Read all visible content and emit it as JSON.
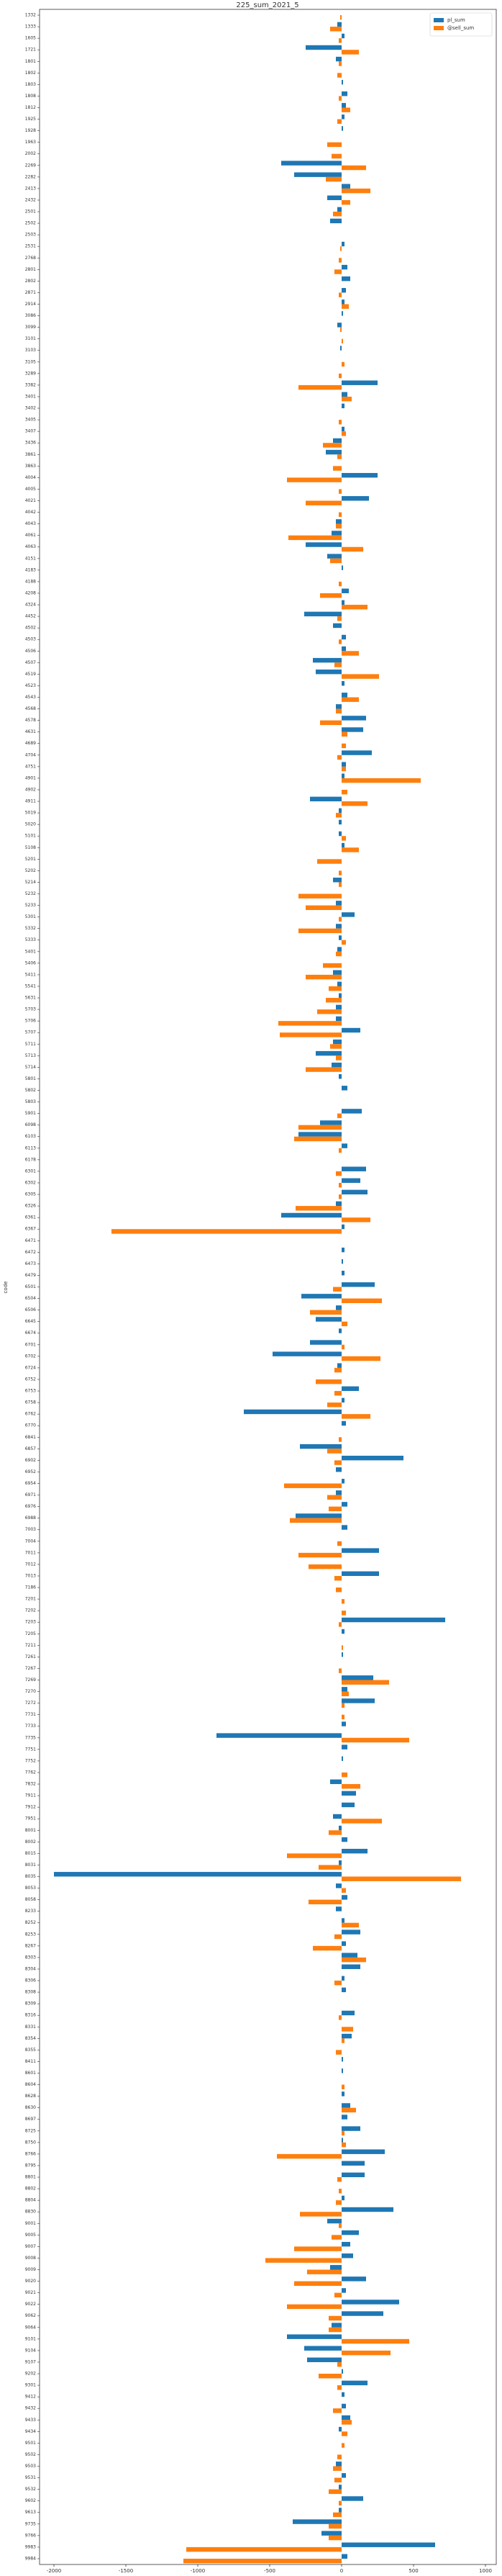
{
  "chart_data": {
    "type": "barh",
    "title": "225_sum_2021_5",
    "y_label": "code",
    "categories": [
      "1332",
      "1333",
      "1605",
      "1721",
      "1801",
      "1802",
      "1803",
      "1808",
      "1812",
      "1925",
      "1928",
      "1963",
      "2002",
      "2269",
      "2282",
      "2413",
      "2432",
      "2501",
      "2502",
      "2503",
      "2531",
      "2768",
      "2801",
      "2802",
      "2871",
      "2914",
      "3086",
      "3099",
      "3101",
      "3103",
      "3105",
      "3289",
      "3382",
      "3401",
      "3402",
      "3405",
      "3407",
      "3436",
      "3861",
      "3863",
      "4004",
      "4005",
      "4021",
      "4042",
      "4043",
      "4061",
      "4063",
      "4151",
      "4183",
      "4188",
      "4208",
      "4324",
      "4452",
      "4502",
      "4503",
      "4506",
      "4507",
      "4519",
      "4523",
      "4543",
      "4568",
      "4578",
      "4631",
      "4689",
      "4704",
      "4751",
      "4901",
      "4902",
      "4911",
      "5019",
      "5020",
      "5101",
      "5108",
      "5201",
      "5202",
      "5214",
      "5232",
      "5233",
      "5301",
      "5332",
      "5333",
      "5401",
      "5406",
      "5411",
      "5541",
      "5631",
      "5703",
      "5706",
      "5707",
      "5711",
      "5713",
      "5714",
      "5801",
      "5802",
      "5803",
      "5901",
      "6098",
      "6103",
      "6113",
      "6178",
      "6301",
      "6302",
      "6305",
      "6326",
      "6361",
      "6367",
      "6471",
      "6472",
      "6473",
      "6479",
      "6501",
      "6504",
      "6506",
      "6645",
      "6674",
      "6701",
      "6702",
      "6724",
      "6752",
      "6753",
      "6758",
      "6762",
      "6770",
      "6841",
      "6857",
      "6902",
      "6952",
      "6954",
      "6971",
      "6976",
      "6988",
      "7003",
      "7004",
      "7011",
      "7012",
      "7013",
      "7186",
      "7201",
      "7202",
      "7203",
      "7205",
      "7211",
      "7261",
      "7267",
      "7269",
      "7270",
      "7272",
      "7731",
      "7733",
      "7735",
      "7751",
      "7752",
      "7762",
      "7832",
      "7911",
      "7912",
      "7951",
      "8001",
      "8002",
      "8015",
      "8031",
      "8035",
      "8053",
      "8058",
      "8233",
      "8252",
      "8253",
      "8267",
      "8303",
      "8304",
      "8306",
      "8308",
      "8309",
      "8316",
      "8331",
      "8354",
      "8355",
      "8411",
      "8601",
      "8604",
      "8628",
      "8630",
      "8697",
      "8725",
      "8750",
      "8766",
      "8795",
      "8801",
      "8802",
      "8804",
      "8830",
      "9001",
      "9005",
      "9007",
      "9008",
      "9009",
      "9020",
      "9021",
      "9022",
      "9062",
      "9064",
      "9101",
      "9104",
      "9107",
      "9202",
      "9301",
      "9412",
      "9432",
      "9433",
      "9434",
      "9501",
      "9502",
      "9503",
      "9531",
      "9532",
      "9602",
      "9613",
      "9735",
      "9766",
      "9983",
      "9984"
    ],
    "series": [
      {
        "name": "pl_sum",
        "color": "#1f77b4",
        "values": [
          0,
          -30,
          20,
          -250,
          -40,
          0,
          10,
          40,
          30,
          20,
          10,
          0,
          0,
          -420,
          -330,
          60,
          -100,
          -30,
          -80,
          0,
          20,
          0,
          40,
          60,
          30,
          20,
          10,
          -30,
          0,
          -10,
          0,
          0,
          250,
          40,
          20,
          0,
          20,
          -60,
          -110,
          0,
          250,
          0,
          190,
          0,
          -40,
          -70,
          -250,
          -100,
          10,
          0,
          50,
          20,
          -260,
          -60,
          30,
          30,
          -200,
          -180,
          20,
          40,
          -40,
          170,
          150,
          0,
          210,
          30,
          20,
          0,
          -220,
          -20,
          -20,
          -20,
          20,
          0,
          0,
          -60,
          0,
          -40,
          90,
          -40,
          -20,
          -30,
          0,
          -60,
          -30,
          -20,
          -40,
          -40,
          130,
          -60,
          -180,
          -70,
          -20,
          40,
          0,
          140,
          -150,
          -300,
          40,
          0,
          170,
          130,
          180,
          -40,
          -420,
          20,
          0,
          20,
          10,
          20,
          230,
          -280,
          -40,
          -180,
          -20,
          -220,
          -480,
          -30,
          0,
          120,
          20,
          -680,
          30,
          0,
          -290,
          430,
          -40,
          20,
          -40,
          40,
          -320,
          40,
          0,
          260,
          0,
          260,
          0,
          0,
          0,
          720,
          20,
          0,
          10,
          0,
          220,
          40,
          230,
          0,
          30,
          -870,
          40,
          10,
          0,
          -80,
          100,
          90,
          -60,
          -20,
          40,
          180,
          -20,
          -2000,
          -40,
          40,
          -40,
          20,
          130,
          30,
          110,
          130,
          20,
          30,
          0,
          90,
          0,
          70,
          0,
          10,
          10,
          0,
          20,
          60,
          40,
          130,
          10,
          300,
          160,
          160,
          0,
          20,
          360,
          -100,
          120,
          60,
          80,
          -80,
          170,
          30,
          400,
          290,
          -70,
          -380,
          -260,
          -240,
          10,
          180,
          20,
          30,
          60,
          -20,
          0,
          0,
          -40,
          30,
          -20,
          150,
          -20,
          -340,
          -140,
          650,
          40
        ]
      },
      {
        "name": "@sell_sum",
        "color": "#ff7f0e",
        "values": [
          -10,
          -80,
          -20,
          120,
          -20,
          -30,
          0,
          -20,
          60,
          -30,
          0,
          -100,
          -70,
          170,
          -110,
          200,
          60,
          -60,
          0,
          0,
          -10,
          -20,
          -50,
          0,
          -20,
          50,
          0,
          -10,
          10,
          0,
          20,
          -20,
          -300,
          70,
          0,
          -20,
          30,
          -130,
          -30,
          -60,
          -380,
          -20,
          -250,
          -20,
          -40,
          -370,
          150,
          -80,
          0,
          -20,
          -150,
          180,
          -30,
          0,
          -20,
          120,
          -50,
          260,
          0,
          120,
          -40,
          -150,
          40,
          30,
          -30,
          30,
          550,
          40,
          180,
          -40,
          0,
          30,
          120,
          -170,
          -20,
          -20,
          -300,
          -250,
          -20,
          -300,
          30,
          -40,
          -130,
          -250,
          -90,
          -110,
          -170,
          -440,
          -430,
          -80,
          -40,
          -250,
          0,
          0,
          0,
          -30,
          -300,
          -330,
          -20,
          0,
          -40,
          -20,
          -20,
          -320,
          200,
          -1600,
          0,
          0,
          0,
          0,
          -60,
          280,
          -220,
          40,
          0,
          20,
          270,
          -50,
          -180,
          -50,
          -100,
          200,
          0,
          -20,
          -100,
          -50,
          0,
          -400,
          -100,
          -90,
          -360,
          0,
          -30,
          -300,
          -230,
          -50,
          -40,
          20,
          30,
          -20,
          0,
          10,
          0,
          -20,
          330,
          50,
          20,
          20,
          0,
          470,
          0,
          0,
          40,
          130,
          0,
          0,
          280,
          -90,
          0,
          -380,
          -160,
          830,
          30,
          -230,
          0,
          120,
          -50,
          -200,
          170,
          0,
          -50,
          0,
          0,
          -20,
          80,
          20,
          -40,
          0,
          0,
          20,
          0,
          100,
          0,
          20,
          30,
          -450,
          0,
          -30,
          -20,
          -40,
          -290,
          -20,
          -70,
          -330,
          -530,
          -240,
          -330,
          -50,
          -380,
          -90,
          -90,
          470,
          340,
          -30,
          -160,
          -30,
          0,
          -60,
          70,
          40,
          20,
          -30,
          -60,
          -50,
          -90,
          -20,
          -60,
          -90,
          -90,
          -1080,
          -1100
        ]
      }
    ],
    "xlim": [
      -2100,
      1075
    ],
    "xticks": [
      -2000,
      -1500,
      -1000,
      -500,
      0,
      500,
      1000
    ],
    "legend": "upper right",
    "grid": false
  }
}
